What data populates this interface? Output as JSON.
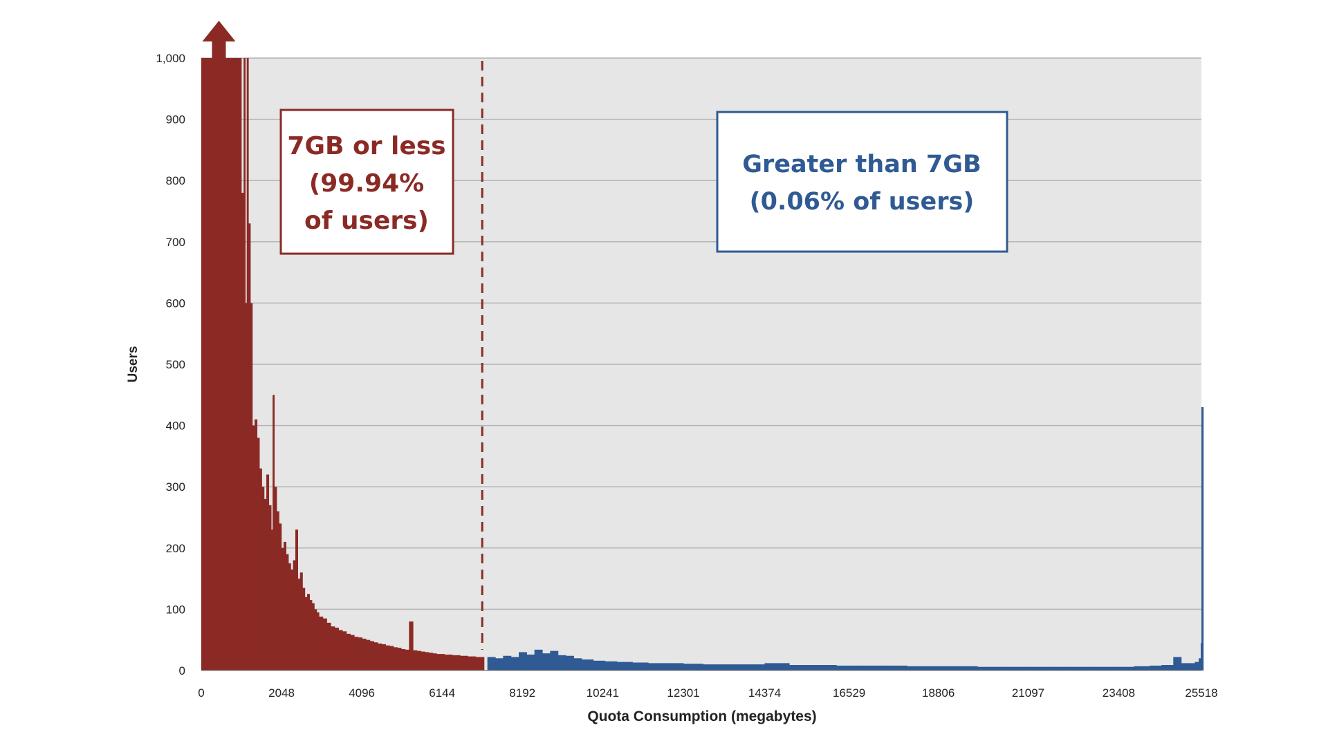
{
  "chart_data": {
    "type": "bar",
    "ylabel": "Users",
    "xlabel": "Quota Consumption (megabytes)",
    "ylim": [
      0,
      1000
    ],
    "xlim": [
      0,
      25518
    ],
    "y_ticks": [
      "0",
      "100",
      "200",
      "300",
      "400",
      "500",
      "600",
      "700",
      "800",
      "900",
      "1,000"
    ],
    "x_ticks": [
      "0",
      "2048",
      "4096",
      "6144",
      "8192",
      "10241",
      "12301",
      "14374",
      "16529",
      "18806",
      "21097",
      "23408",
      "25518"
    ],
    "x_tick_values": [
      0,
      2048,
      4096,
      6144,
      8192,
      10241,
      12301,
      14374,
      16529,
      18806,
      21097,
      23408,
      25518
    ],
    "grid": true,
    "threshold_mb": 7168,
    "overflow_arrow_x_mb": 450,
    "colors": {
      "low": "#8b2a25",
      "high": "#2f5a93",
      "plot_bg": "#e6e6e6",
      "grid": "#b4b4b4"
    },
    "series": [
      {
        "color": "#8b2a25",
        "x": [
          0,
          120,
          240,
          360,
          480,
          600,
          720,
          840,
          960,
          1020,
          1080,
          1120,
          1160,
          1200,
          1250,
          1300,
          1360,
          1420,
          1480,
          1540,
          1600,
          1660,
          1720,
          1780,
          1820,
          1860,
          1920,
          1980,
          2040,
          2100,
          2160,
          2220,
          2280,
          2340,
          2400,
          2460,
          2520,
          2580,
          2640,
          2700,
          2760,
          2820,
          2880,
          2940,
          3000,
          3100,
          3200,
          3300,
          3400,
          3500,
          3600,
          3700,
          3800,
          3900,
          4000,
          4100,
          4200,
          4300,
          4400,
          4500,
          4600,
          4700,
          4800,
          4900,
          5000,
          5100,
          5200,
          5300,
          5400,
          5500,
          5600,
          5700,
          5800,
          5900,
          6000,
          6200,
          6400,
          6600,
          6800,
          7000,
          7168
        ],
        "values": [
          1000,
          1000,
          1000,
          1000,
          1000,
          1000,
          1000,
          1000,
          1000,
          780,
          1000,
          600,
          1000,
          730,
          600,
          400,
          410,
          380,
          330,
          300,
          280,
          320,
          270,
          230,
          450,
          300,
          260,
          240,
          200,
          210,
          190,
          175,
          165,
          180,
          230,
          150,
          160,
          135,
          120,
          125,
          115,
          110,
          100,
          95,
          88,
          85,
          78,
          72,
          70,
          66,
          64,
          60,
          58,
          55,
          54,
          52,
          50,
          48,
          46,
          44,
          43,
          41,
          40,
          38,
          37,
          35,
          34,
          80,
          33,
          32,
          31,
          30,
          29,
          28,
          27,
          26,
          25,
          24,
          23,
          22,
          22
        ]
      },
      {
        "color": "#2f5a93",
        "x": [
          7300,
          7500,
          7700,
          7900,
          8100,
          8300,
          8500,
          8700,
          8900,
          9100,
          9300,
          9500,
          9700,
          10000,
          10300,
          10600,
          11000,
          11400,
          11800,
          12300,
          12800,
          13300,
          13800,
          14374,
          15000,
          15600,
          16200,
          16800,
          17400,
          18000,
          18600,
          19200,
          19800,
          20400,
          21000,
          21600,
          22200,
          22800,
          23400,
          23800,
          24200,
          24500,
          24800,
          25000,
          25200,
          25350,
          25450,
          25500,
          25518
        ],
        "values": [
          22,
          20,
          24,
          22,
          30,
          26,
          34,
          28,
          32,
          25,
          24,
          20,
          18,
          16,
          15,
          14,
          13,
          12,
          12,
          11,
          10,
          10,
          10,
          12,
          9,
          9,
          8,
          8,
          8,
          7,
          7,
          7,
          6,
          6,
          6,
          6,
          6,
          6,
          6,
          7,
          8,
          9,
          22,
          12,
          12,
          14,
          20,
          45,
          430
        ]
      }
    ],
    "annotations": [
      {
        "text_lines": [
          "7GB or less",
          "(99.94%",
          "of users)"
        ],
        "color": "#8b2a25"
      },
      {
        "text_lines": [
          "Greater than 7GB",
          "(0.06% of users)"
        ],
        "color": "#2f5a93"
      }
    ]
  }
}
